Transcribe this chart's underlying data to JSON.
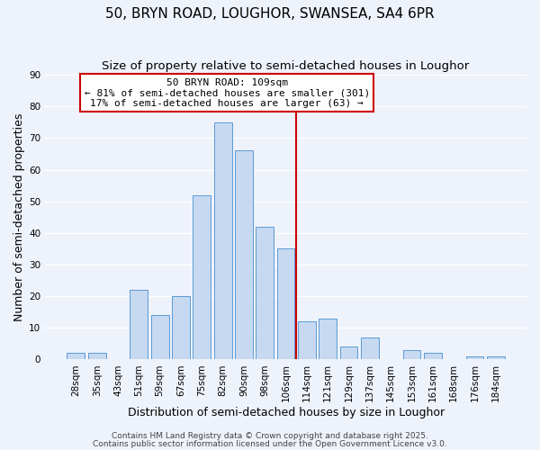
{
  "title1": "50, BRYN ROAD, LOUGHOR, SWANSEA, SA4 6PR",
  "title2": "Size of property relative to semi-detached houses in Loughor",
  "xlabel": "Distribution of semi-detached houses by size in Loughor",
  "ylabel": "Number of semi-detached properties",
  "bar_labels": [
    "28sqm",
    "35sqm",
    "43sqm",
    "51sqm",
    "59sqm",
    "67sqm",
    "75sqm",
    "82sqm",
    "90sqm",
    "98sqm",
    "106sqm",
    "114sqm",
    "121sqm",
    "129sqm",
    "137sqm",
    "145sqm",
    "153sqm",
    "161sqm",
    "168sqm",
    "176sqm",
    "184sqm"
  ],
  "bar_heights": [
    2,
    2,
    0,
    22,
    14,
    20,
    52,
    75,
    66,
    42,
    35,
    12,
    13,
    4,
    7,
    0,
    3,
    2,
    0,
    1,
    1
  ],
  "bar_color": "#c6d9f1",
  "bar_edge_color": "#5b9bd5",
  "vline_x": 10.5,
  "vline_color": "#cc0000",
  "ylim": [
    0,
    90
  ],
  "yticks": [
    0,
    10,
    20,
    30,
    40,
    50,
    60,
    70,
    80,
    90
  ],
  "annotation_title": "50 BRYN ROAD: 109sqm",
  "annotation_line1": "← 81% of semi-detached houses are smaller (301)",
  "annotation_line2": "17% of semi-detached houses are larger (63) →",
  "annotation_box_color": "#cc0000",
  "footer1": "Contains HM Land Registry data © Crown copyright and database right 2025.",
  "footer2": "Contains public sector information licensed under the Open Government Licence v3.0.",
  "bg_color": "#eef2fb",
  "grid_color": "#ffffff",
  "title_fontsize": 11,
  "subtitle_fontsize": 9.5,
  "axis_label_fontsize": 9,
  "tick_fontsize": 7.5,
  "annotation_fontsize": 8,
  "footer_fontsize": 6.5
}
